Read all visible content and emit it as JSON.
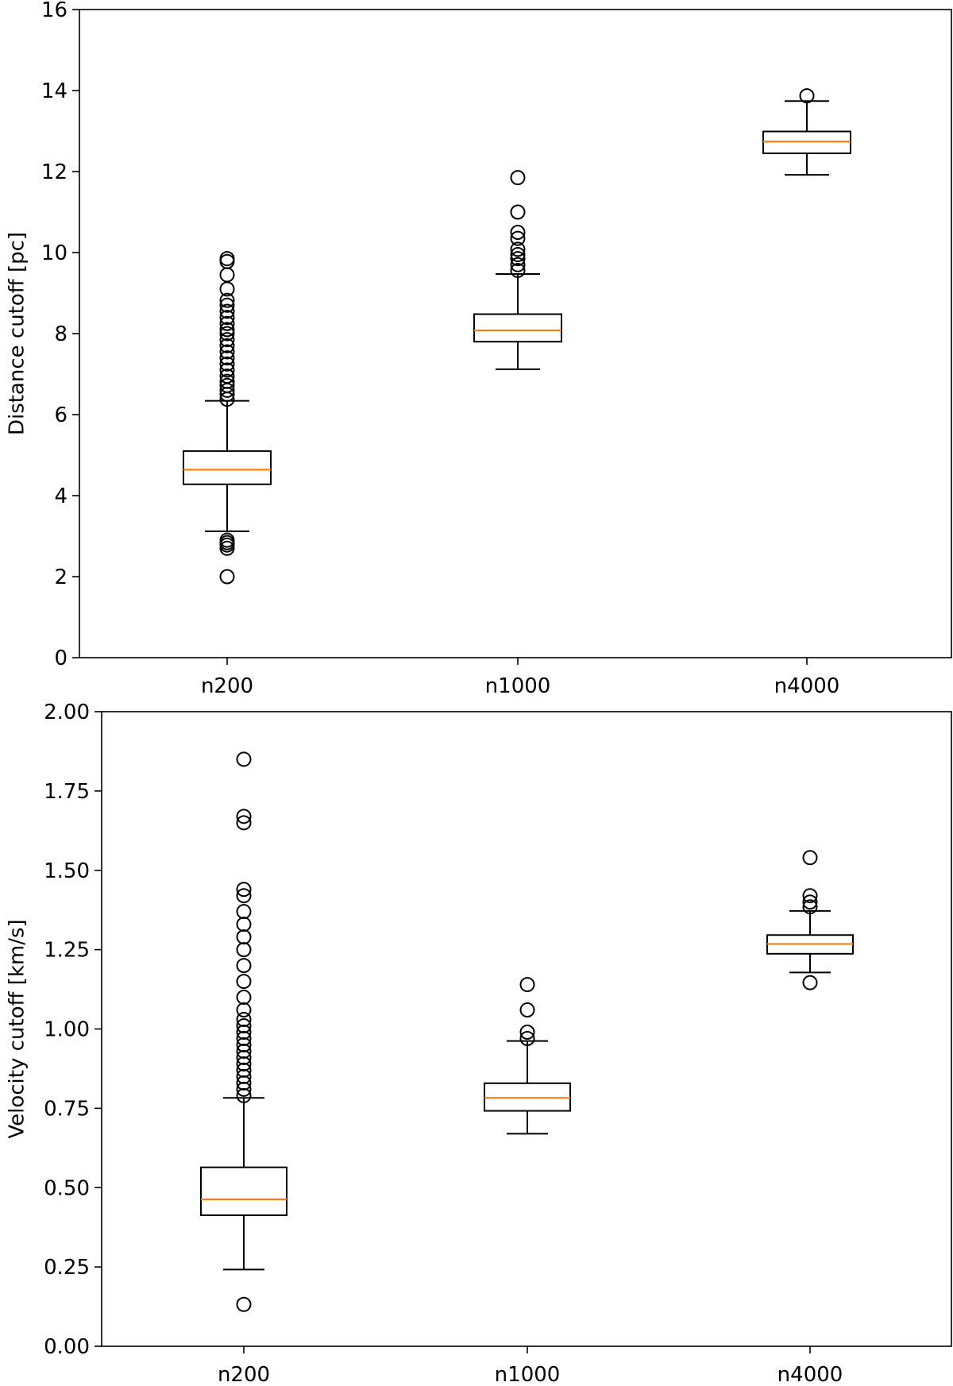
{
  "chart_data": [
    {
      "type": "box",
      "title": "",
      "xlabel": "",
      "ylabel": "Distance cutoff [pc]",
      "ylim": [
        0,
        16
      ],
      "yticks": [
        0,
        2,
        4,
        6,
        8,
        10,
        12,
        14,
        16
      ],
      "ytick_labels": [
        "0",
        "2",
        "4",
        "6",
        "8",
        "10",
        "12",
        "14",
        "16"
      ],
      "categories": [
        "n200",
        "n1000",
        "n4000"
      ],
      "grid": false,
      "colors": {
        "median": "#ff7f0e",
        "box": "#000000"
      },
      "boxes": [
        {
          "category": "n200",
          "q1": 4.28,
          "median": 4.64,
          "q3": 5.1,
          "whisker_low": 3.12,
          "whisker_high": 6.34,
          "outliers": [
            2.0,
            2.7,
            2.78,
            2.84,
            2.9,
            6.38,
            6.5,
            6.6,
            6.72,
            6.82,
            6.95,
            7.1,
            7.25,
            7.4,
            7.55,
            7.7,
            7.85,
            8.0,
            8.1,
            8.25,
            8.4,
            8.55,
            8.7,
            8.82,
            9.1,
            9.45,
            9.78,
            9.85
          ]
        },
        {
          "category": "n1000",
          "q1": 7.8,
          "median": 8.08,
          "q3": 8.48,
          "whisker_low": 7.12,
          "whisker_high": 9.47,
          "outliers": [
            9.56,
            9.7,
            9.85,
            9.95,
            10.08,
            10.35,
            10.5,
            11.0,
            11.85
          ]
        },
        {
          "category": "n4000",
          "q1": 12.45,
          "median": 12.74,
          "q3": 12.99,
          "whisker_low": 11.92,
          "whisker_high": 13.74,
          "outliers": [
            13.87
          ]
        }
      ]
    },
    {
      "type": "box",
      "title": "",
      "xlabel": "",
      "ylabel": "Velocity cutoff [km/s]",
      "ylim": [
        0,
        2
      ],
      "yticks": [
        0,
        0.25,
        0.5,
        0.75,
        1.0,
        1.25,
        1.5,
        1.75,
        2.0
      ],
      "ytick_labels": [
        "0.00",
        "0.25",
        "0.50",
        "0.75",
        "1.00",
        "1.25",
        "1.50",
        "1.75",
        "2.00"
      ],
      "categories": [
        "n200",
        "n1000",
        "n4000"
      ],
      "grid": false,
      "colors": {
        "median": "#ff7f0e",
        "box": "#000000"
      },
      "boxes": [
        {
          "category": "n200",
          "q1": 0.413,
          "median": 0.463,
          "q3": 0.564,
          "whisker_low": 0.242,
          "whisker_high": 0.783,
          "outliers": [
            0.132,
            0.79,
            0.81,
            0.83,
            0.85,
            0.87,
            0.89,
            0.91,
            0.93,
            0.95,
            0.97,
            0.99,
            1.01,
            1.03,
            1.06,
            1.1,
            1.15,
            1.2,
            1.25,
            1.29,
            1.33,
            1.37,
            1.42,
            1.44,
            1.65,
            1.67,
            1.85
          ]
        },
        {
          "category": "n1000",
          "q1": 0.742,
          "median": 0.783,
          "q3": 0.829,
          "whisker_low": 0.67,
          "whisker_high": 0.962,
          "outliers": [
            0.97,
            0.99,
            1.06,
            1.14
          ]
        },
        {
          "category": "n4000",
          "q1": 1.237,
          "median": 1.268,
          "q3": 1.296,
          "whisker_low": 1.178,
          "whisker_high": 1.372,
          "outliers": [
            1.146,
            1.385,
            1.4,
            1.42,
            1.54
          ]
        }
      ]
    }
  ]
}
